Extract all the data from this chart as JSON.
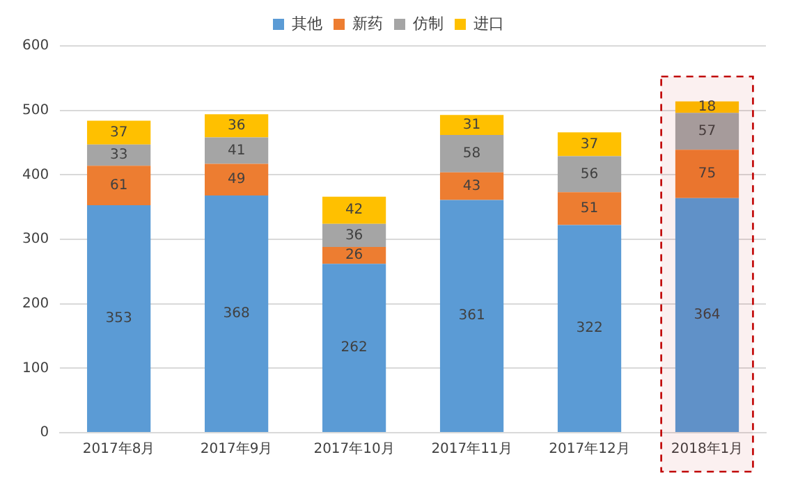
{
  "chart_data": {
    "type": "bar",
    "stacked": true,
    "categories": [
      "2017年8月",
      "2017年9月",
      "2017年10月",
      "2017年11月",
      "2017年12月",
      "2018年1月"
    ],
    "series": [
      {
        "name": "其他",
        "color": "#5b9bd5",
        "values": [
          353,
          368,
          262,
          361,
          322,
          364
        ]
      },
      {
        "name": "新药",
        "color": "#ed7d31",
        "values": [
          61,
          49,
          26,
          43,
          51,
          75
        ]
      },
      {
        "name": "仿制",
        "color": "#a5a5a5",
        "values": [
          33,
          41,
          36,
          58,
          56,
          57
        ]
      },
      {
        "name": "进口",
        "color": "#ffc000",
        "values": [
          37,
          36,
          42,
          31,
          37,
          18
        ]
      }
    ],
    "ylim": [
      0,
      600
    ],
    "yticks": [
      0,
      100,
      200,
      300,
      400,
      500,
      600
    ],
    "grid": "y",
    "legend": "top",
    "data_labels": true,
    "bands": [
      {
        "axis": "x",
        "from": "2018年1月",
        "to": "2018年1月",
        "color": "#c00000"
      }
    ]
  }
}
